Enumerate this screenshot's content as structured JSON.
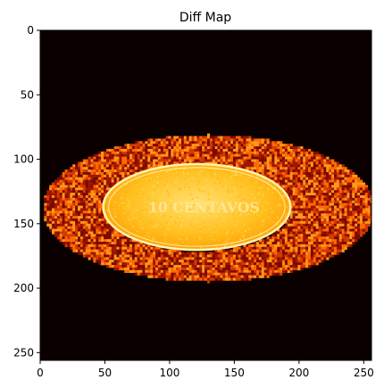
{
  "chart_data": {
    "type": "heatmap",
    "title": "Diff Map",
    "colormap": "hot",
    "background_color": "#0a0000",
    "x_ticks": [
      0,
      50,
      100,
      150,
      200,
      250
    ],
    "y_ticks": [
      0,
      50,
      100,
      150,
      200,
      250
    ],
    "xlim": [
      0,
      256
    ],
    "ylim": [
      256,
      0
    ],
    "image_size": [
      256,
      256
    ],
    "regions": [
      {
        "name": "noisy-ellipse",
        "center": [
          129,
          137
        ],
        "radii": [
          128,
          57
        ],
        "colors": [
          "#a01600",
          "#d43a00",
          "#ff6a00",
          "#ff9a1a",
          "#7a0a00"
        ]
      },
      {
        "name": "coin",
        "center": [
          121,
          137
        ],
        "radii": [
          73,
          34
        ],
        "colors": [
          "#ffd240",
          "#ffb000",
          "#ffe070"
        ],
        "rim_color": "#fff2b0",
        "engraving_text": "10 CENTAVOS"
      }
    ]
  }
}
